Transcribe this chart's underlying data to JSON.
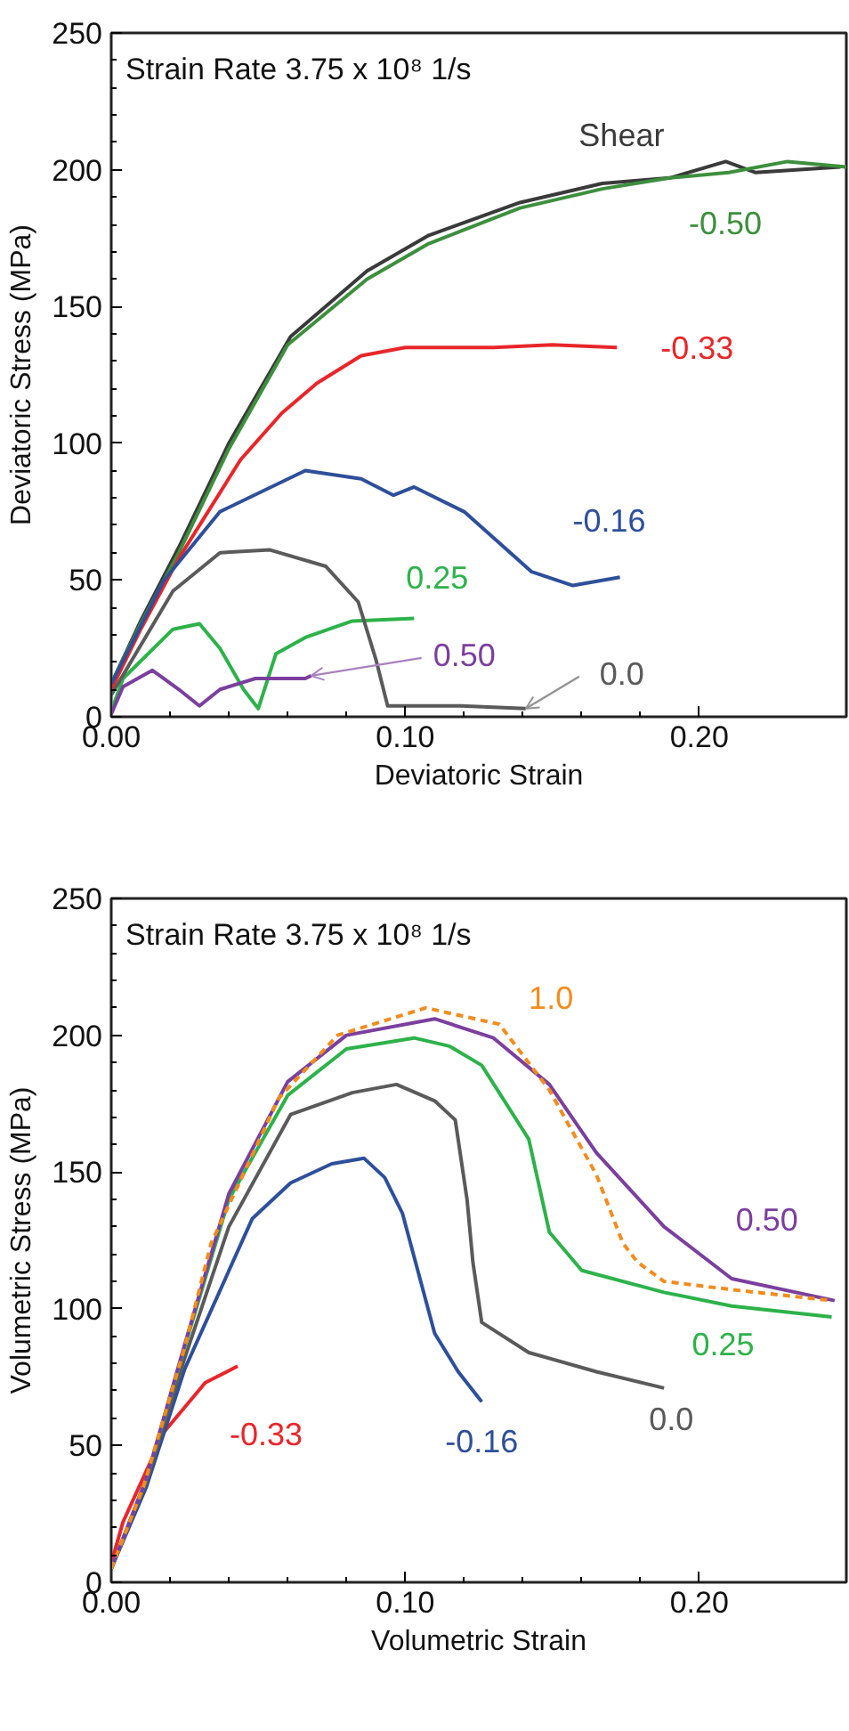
{
  "chart_data": [
    {
      "type": "line",
      "title": "Strain Rate 3.75 x 10⁸ 1/s",
      "xlabel": "Deviatoric Strain",
      "ylabel": "Deviatoric Stress (MPa)",
      "xlim": [
        0,
        0.25
      ],
      "xticks": [
        {
          "value": 0,
          "label": "0.00"
        },
        {
          "value": 0.1,
          "label": "0.10"
        },
        {
          "value": 0.2,
          "label": "0.20"
        }
      ],
      "ylim": [
        0,
        250
      ],
      "yticks": [
        0,
        50,
        100,
        150,
        200,
        250
      ],
      "grid": false,
      "series": [
        {
          "name": "Shear",
          "color": "#3a3a3a",
          "x": [
            0,
            0.01,
            0.023,
            0.04,
            0.061,
            0.087,
            0.108,
            0.139,
            0.167,
            0.19,
            0.209,
            0.219,
            0.248
          ],
          "values": [
            12,
            35,
            62,
            100,
            139,
            163,
            176,
            188,
            195,
            197,
            203,
            199,
            201
          ]
        },
        {
          "name": "-0.50",
          "color": "#3d8f3d",
          "x": [
            0,
            0.01,
            0.023,
            0.04,
            0.06,
            0.087,
            0.108,
            0.139,
            0.167,
            0.19,
            0.21,
            0.23,
            0.25
          ],
          "values": [
            12,
            34,
            60,
            98,
            136,
            160,
            173,
            186,
            193,
            197,
            199,
            203,
            201
          ]
        },
        {
          "name": "-0.33",
          "color": "#e8262a",
          "x": [
            0,
            0.01,
            0.023,
            0.044,
            0.058,
            0.07,
            0.085,
            0.1,
            0.13,
            0.15,
            0.172
          ],
          "values": [
            10,
            32,
            58,
            94,
            111,
            122,
            132,
            135,
            135,
            136,
            135
          ]
        },
        {
          "name": "-0.16",
          "color": "#2e4f9a",
          "x": [
            0,
            0.018,
            0.037,
            0.066,
            0.085,
            0.096,
            0.103,
            0.12,
            0.143,
            0.157,
            0.173
          ],
          "values": [
            12,
            50,
            75,
            90,
            87,
            81,
            84,
            75,
            53,
            48,
            51
          ]
        },
        {
          "name": "0.25",
          "color": "#2db24a",
          "x": [
            0,
            0.004,
            0.021,
            0.03,
            0.037,
            0.045,
            0.05,
            0.056,
            0.066,
            0.082,
            0.103
          ],
          "values": [
            2,
            14,
            32,
            34,
            25,
            10,
            3,
            23,
            29,
            35,
            36
          ]
        },
        {
          "name": "0.50",
          "color": "#7b3f9e",
          "x": [
            0,
            0.004,
            0.014,
            0.023,
            0.03,
            0.037,
            0.049,
            0.066,
            0.068
          ],
          "values": [
            1,
            11,
            17,
            10,
            4,
            10,
            14,
            14,
            15
          ]
        },
        {
          "name": "0.0",
          "color": "#5a5a5a",
          "x": [
            0,
            0.021,
            0.037,
            0.054,
            0.073,
            0.084,
            0.09,
            0.094,
            0.119,
            0.141
          ],
          "values": [
            8,
            46,
            60,
            61,
            55,
            42,
            21,
            4,
            4,
            3
          ]
        }
      ]
    },
    {
      "type": "line",
      "title": "Strain Rate 3.75 x 10⁸ 1/s",
      "xlabel": "Volumetric Strain",
      "ylabel": "Volumetric Stress (MPa)",
      "xlim": [
        0,
        0.25
      ],
      "xticks": [
        {
          "value": 0,
          "label": "0.00"
        },
        {
          "value": 0.1,
          "label": "0.10"
        },
        {
          "value": 0.2,
          "label": "0.20"
        }
      ],
      "ylim": [
        0,
        250
      ],
      "yticks": [
        0,
        50,
        100,
        150,
        200,
        250
      ],
      "grid": false,
      "series": [
        {
          "name": "-0.33",
          "color": "#e8262a",
          "x": [
            0,
            0.004,
            0.018,
            0.032,
            0.043
          ],
          "values": [
            7,
            22,
            55,
            73,
            79
          ]
        },
        {
          "name": "-0.16",
          "color": "#2e4f9a",
          "x": [
            0,
            0.012,
            0.025,
            0.048,
            0.061,
            0.075,
            0.086,
            0.093,
            0.099,
            0.104,
            0.11,
            0.118,
            0.126
          ],
          "values": [
            5,
            35,
            78,
            133,
            146,
            153,
            155,
            148,
            135,
            115,
            91,
            77,
            66
          ]
        },
        {
          "name": "0.0",
          "color": "#5a5a5a",
          "x": [
            0,
            0.012,
            0.025,
            0.04,
            0.061,
            0.082,
            0.097,
            0.11,
            0.117,
            0.121,
            0.123,
            0.126,
            0.142,
            0.165,
            0.188
          ],
          "values": [
            5,
            37,
            82,
            130,
            171,
            179,
            182,
            176,
            169,
            140,
            117,
            95,
            84,
            77,
            71
          ]
        },
        {
          "name": "0.25",
          "color": "#2db24a",
          "x": [
            0,
            0.012,
            0.025,
            0.04,
            0.06,
            0.08,
            0.103,
            0.115,
            0.126,
            0.142,
            0.149,
            0.16,
            0.188,
            0.211,
            0.245
          ],
          "values": [
            5,
            38,
            86,
            140,
            178,
            195,
            199,
            196,
            189,
            162,
            128,
            114,
            106,
            101,
            97
          ]
        },
        {
          "name": "0.50",
          "color": "#7b3f9e",
          "x": [
            0,
            0.012,
            0.025,
            0.04,
            0.06,
            0.08,
            0.11,
            0.13,
            0.149,
            0.165,
            0.188,
            0.211,
            0.246
          ],
          "values": [
            5,
            38,
            87,
            142,
            183,
            200,
            206,
            199,
            182,
            157,
            130,
            111,
            103
          ]
        },
        {
          "name": "1.0",
          "color": "#f28c1e",
          "line_style": "dashed",
          "x": [
            0,
            0.011,
            0.025,
            0.034,
            0.057,
            0.077,
            0.107,
            0.132,
            0.149,
            0.165,
            0.174,
            0.179,
            0.188,
            0.211,
            0.245
          ],
          "values": [
            5,
            35,
            86,
            124,
            177,
            200,
            210,
            204,
            180,
            149,
            124,
            117,
            110,
            107,
            103
          ]
        }
      ]
    }
  ]
}
